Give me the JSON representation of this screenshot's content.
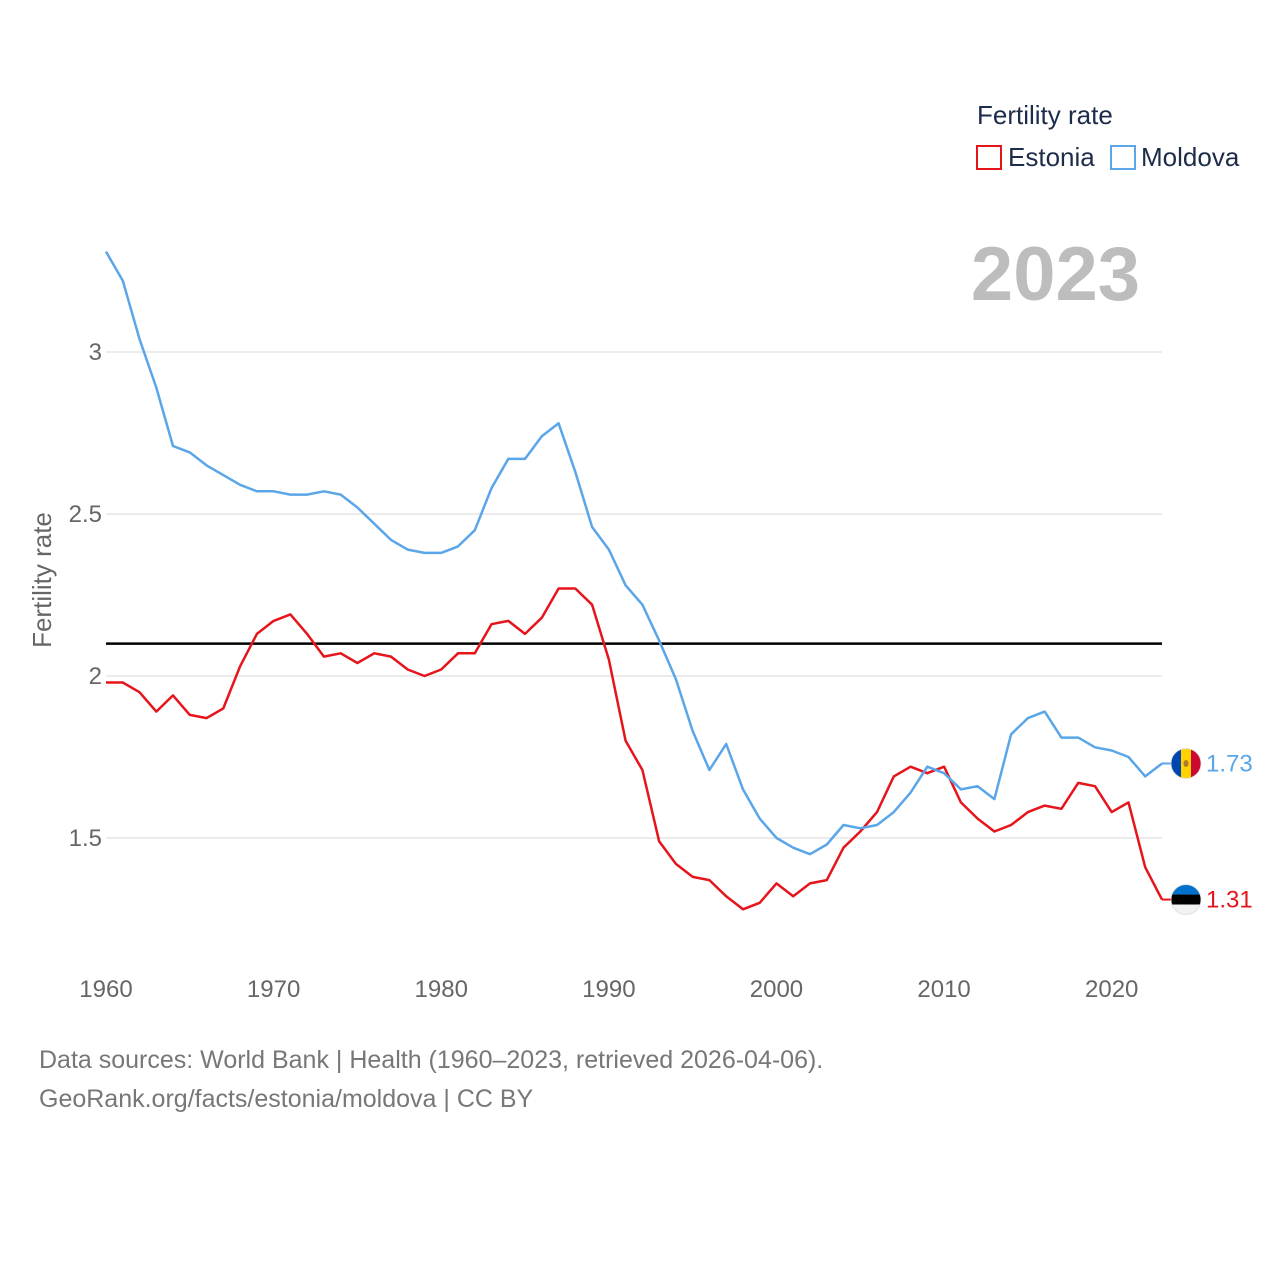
{
  "chart_data": {
    "type": "line",
    "ylabel": "Fertility rate",
    "xlabel": "",
    "xlim": [
      1960,
      2023
    ],
    "ylim": [
      1.2,
      3.3
    ],
    "x_ticks": [
      "1960",
      "1970",
      "1980",
      "1990",
      "2000",
      "2010",
      "2020"
    ],
    "y_ticks": [
      "1.5",
      "2",
      "2.5",
      "3"
    ],
    "grid": true,
    "reference_line": 2.1,
    "year_label": "2023",
    "legend": {
      "title": "Fertility rate",
      "position": "top-right"
    },
    "x": [
      1960,
      1961,
      1962,
      1963,
      1964,
      1965,
      1966,
      1967,
      1968,
      1969,
      1970,
      1971,
      1972,
      1973,
      1974,
      1975,
      1976,
      1977,
      1978,
      1979,
      1980,
      1981,
      1982,
      1983,
      1984,
      1985,
      1986,
      1987,
      1988,
      1989,
      1990,
      1991,
      1992,
      1993,
      1994,
      1995,
      1996,
      1997,
      1998,
      1999,
      2000,
      2001,
      2002,
      2003,
      2004,
      2005,
      2006,
      2007,
      2008,
      2009,
      2010,
      2011,
      2012,
      2013,
      2014,
      2015,
      2016,
      2017,
      2018,
      2019,
      2020,
      2021,
      2022,
      2023
    ],
    "series": [
      {
        "name": "Estonia",
        "color": "#e6141b",
        "end_label": "1.31",
        "flag": "estonia-flag",
        "values": [
          1.98,
          1.98,
          1.95,
          1.89,
          1.94,
          1.88,
          1.87,
          1.9,
          2.03,
          2.13,
          2.17,
          2.19,
          2.13,
          2.06,
          2.07,
          2.04,
          2.07,
          2.06,
          2.02,
          2.0,
          2.02,
          2.07,
          2.07,
          2.16,
          2.17,
          2.13,
          2.18,
          2.27,
          2.27,
          2.22,
          2.05,
          1.8,
          1.71,
          1.49,
          1.42,
          1.38,
          1.37,
          1.32,
          1.28,
          1.3,
          1.36,
          1.32,
          1.36,
          1.37,
          1.47,
          1.52,
          1.58,
          1.69,
          1.72,
          1.7,
          1.72,
          1.61,
          1.56,
          1.52,
          1.54,
          1.58,
          1.6,
          1.59,
          1.67,
          1.66,
          1.58,
          1.61,
          1.41,
          1.31
        ]
      },
      {
        "name": "Moldova",
        "color": "#5aa6e8",
        "end_label": "1.73",
        "flag": "moldova-flag",
        "values": [
          3.31,
          3.22,
          3.04,
          2.89,
          2.71,
          2.69,
          2.65,
          2.62,
          2.59,
          2.57,
          2.57,
          2.56,
          2.56,
          2.57,
          2.56,
          2.52,
          2.47,
          2.42,
          2.39,
          2.38,
          2.38,
          2.4,
          2.45,
          2.58,
          2.67,
          2.67,
          2.74,
          2.78,
          2.63,
          2.46,
          2.39,
          2.28,
          2.22,
          2.11,
          1.99,
          1.83,
          1.71,
          1.79,
          1.65,
          1.56,
          1.5,
          1.47,
          1.45,
          1.48,
          1.54,
          1.53,
          1.54,
          1.58,
          1.64,
          1.72,
          1.7,
          1.65,
          1.66,
          1.62,
          1.82,
          1.87,
          1.89,
          1.81,
          1.81,
          1.78,
          1.77,
          1.75,
          1.69,
          1.73
        ]
      }
    ]
  },
  "footer": {
    "line1": "Data sources: World Bank | Health (1960–2023, retrieved 2026-04-06).",
    "line2": "GeoRank.org/facts/estonia/moldova | CC BY"
  }
}
